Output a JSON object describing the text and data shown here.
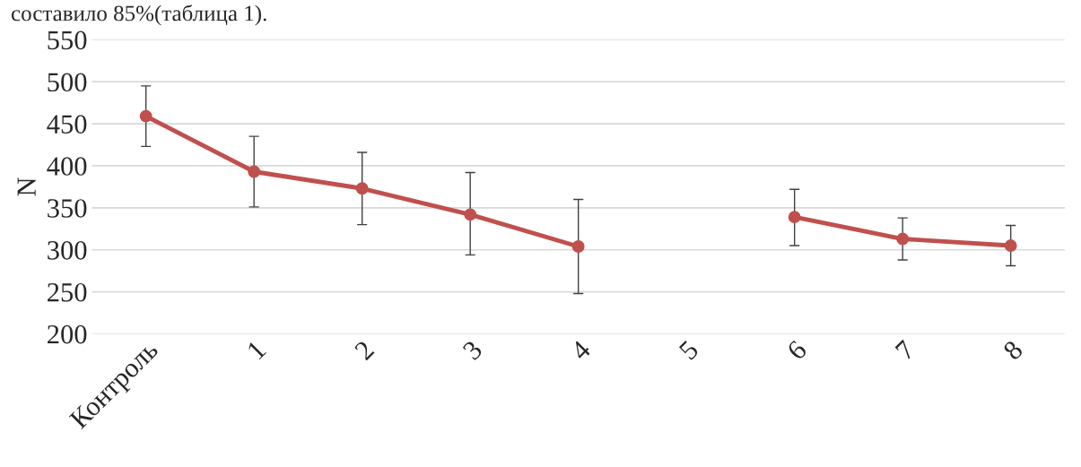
{
  "chart_data": {
    "type": "line",
    "ylabel": "N",
    "annotations": [
      "составило 85%(таблица 1)."
    ],
    "categories": [
      "Контроль",
      "1",
      "2",
      "3",
      "4",
      "5",
      "6",
      "7",
      "8"
    ],
    "series": [
      {
        "color": "#c0504d",
        "values": [
          459,
          393,
          373,
          342,
          304,
          null,
          339,
          313,
          305
        ],
        "errors": [
          [
            423,
            495
          ],
          [
            351,
            435
          ],
          [
            330,
            416
          ],
          [
            294,
            392
          ],
          [
            248,
            360
          ],
          null,
          [
            305,
            372
          ],
          [
            288,
            338
          ],
          [
            281,
            329
          ]
        ]
      }
    ],
    "ylim": [
      200,
      550
    ],
    "yticks": [
      200,
      250,
      300,
      350,
      400,
      450,
      500,
      550
    ],
    "grid": "y",
    "marker": "circle",
    "line_style": "solid",
    "legend": false
  }
}
